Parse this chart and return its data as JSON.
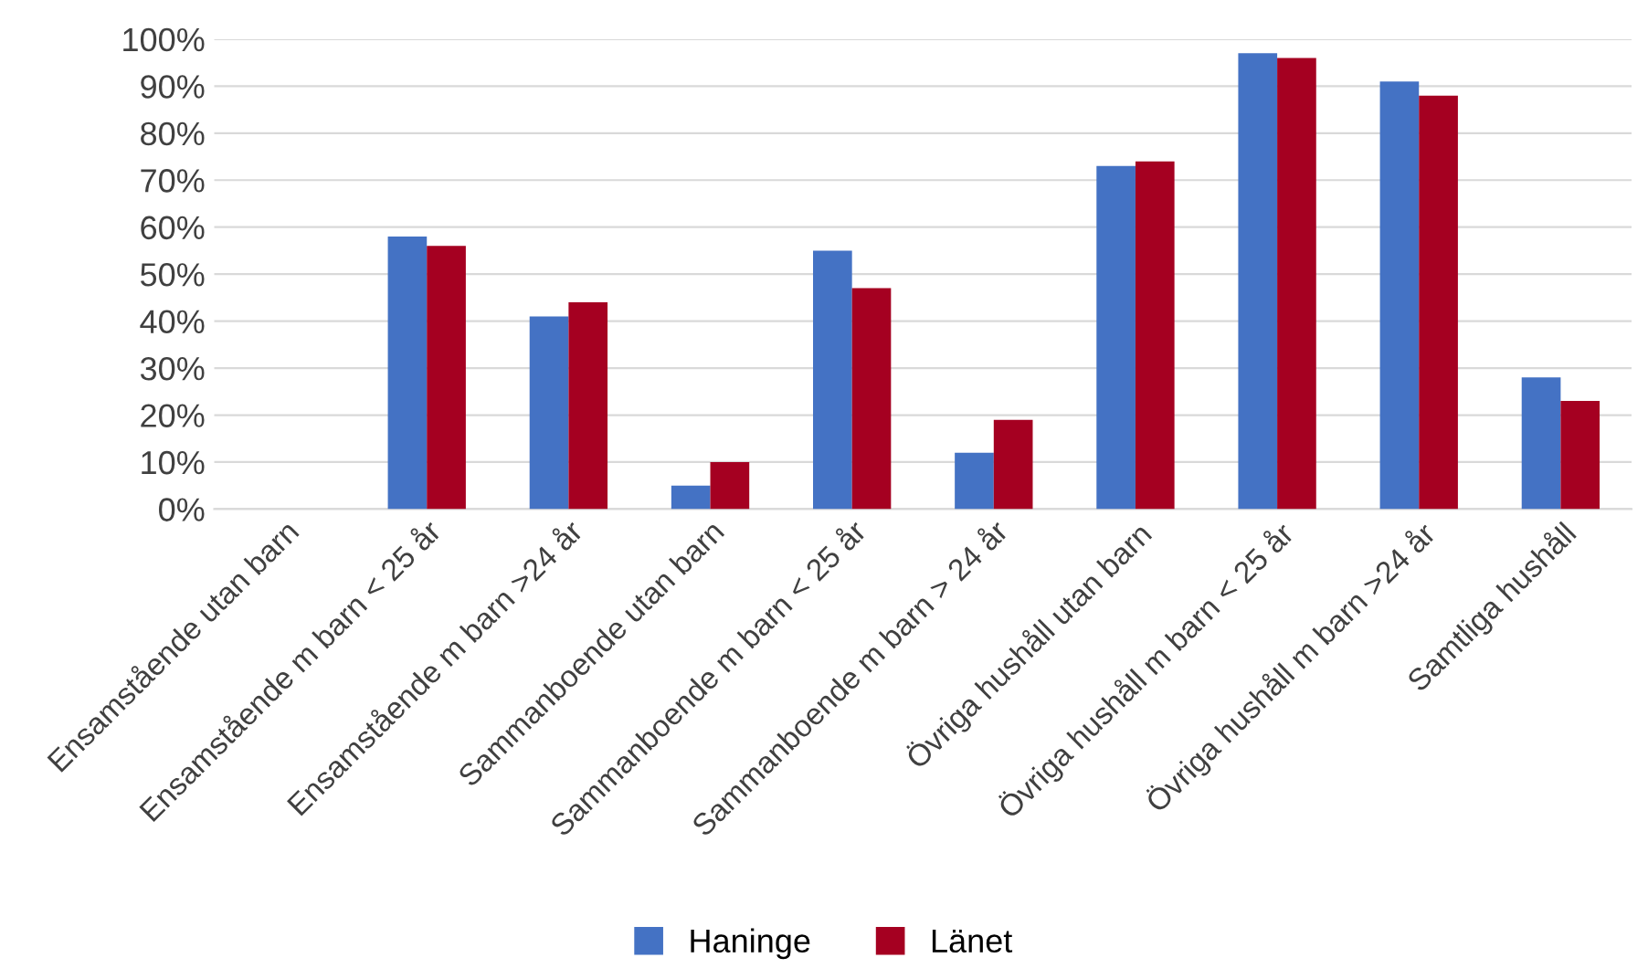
{
  "chart_data": {
    "type": "bar",
    "categories": [
      "Ensamstående utan barn",
      "Ensamstående m barn < 25 år",
      "Ensamstående m barn >24 år",
      "Sammanboende utan barn",
      "Sammanboende m barn < 25 år",
      "Sammanboende m barn > 24 år",
      "Övriga hushåll utan barn",
      "Övriga hushåll m barn < 25 år",
      "Övriga hushåll m barn >24 år",
      "Samtliga hushåll"
    ],
    "series": [
      {
        "name": "Haninge",
        "color": "#4472c4",
        "values": [
          0,
          58,
          41,
          5,
          55,
          12,
          73,
          97,
          91,
          28
        ]
      },
      {
        "name": "Länet",
        "color": "#a50021",
        "values": [
          0,
          56,
          44,
          10,
          47,
          19,
          74,
          96,
          88,
          23
        ]
      }
    ],
    "ylim": [
      0,
      100
    ],
    "yticks": [
      {
        "value": 0,
        "label": "0%"
      },
      {
        "value": 10,
        "label": "10%"
      },
      {
        "value": 20,
        "label": "20%"
      },
      {
        "value": 30,
        "label": "30%"
      },
      {
        "value": 40,
        "label": "40%"
      },
      {
        "value": 50,
        "label": "50%"
      },
      {
        "value": 60,
        "label": "60%"
      },
      {
        "value": 70,
        "label": "70%"
      },
      {
        "value": 80,
        "label": "80%"
      },
      {
        "value": 90,
        "label": "90%"
      },
      {
        "value": 100,
        "label": "100%"
      }
    ],
    "grid": "y",
    "legend": "bottom"
  }
}
